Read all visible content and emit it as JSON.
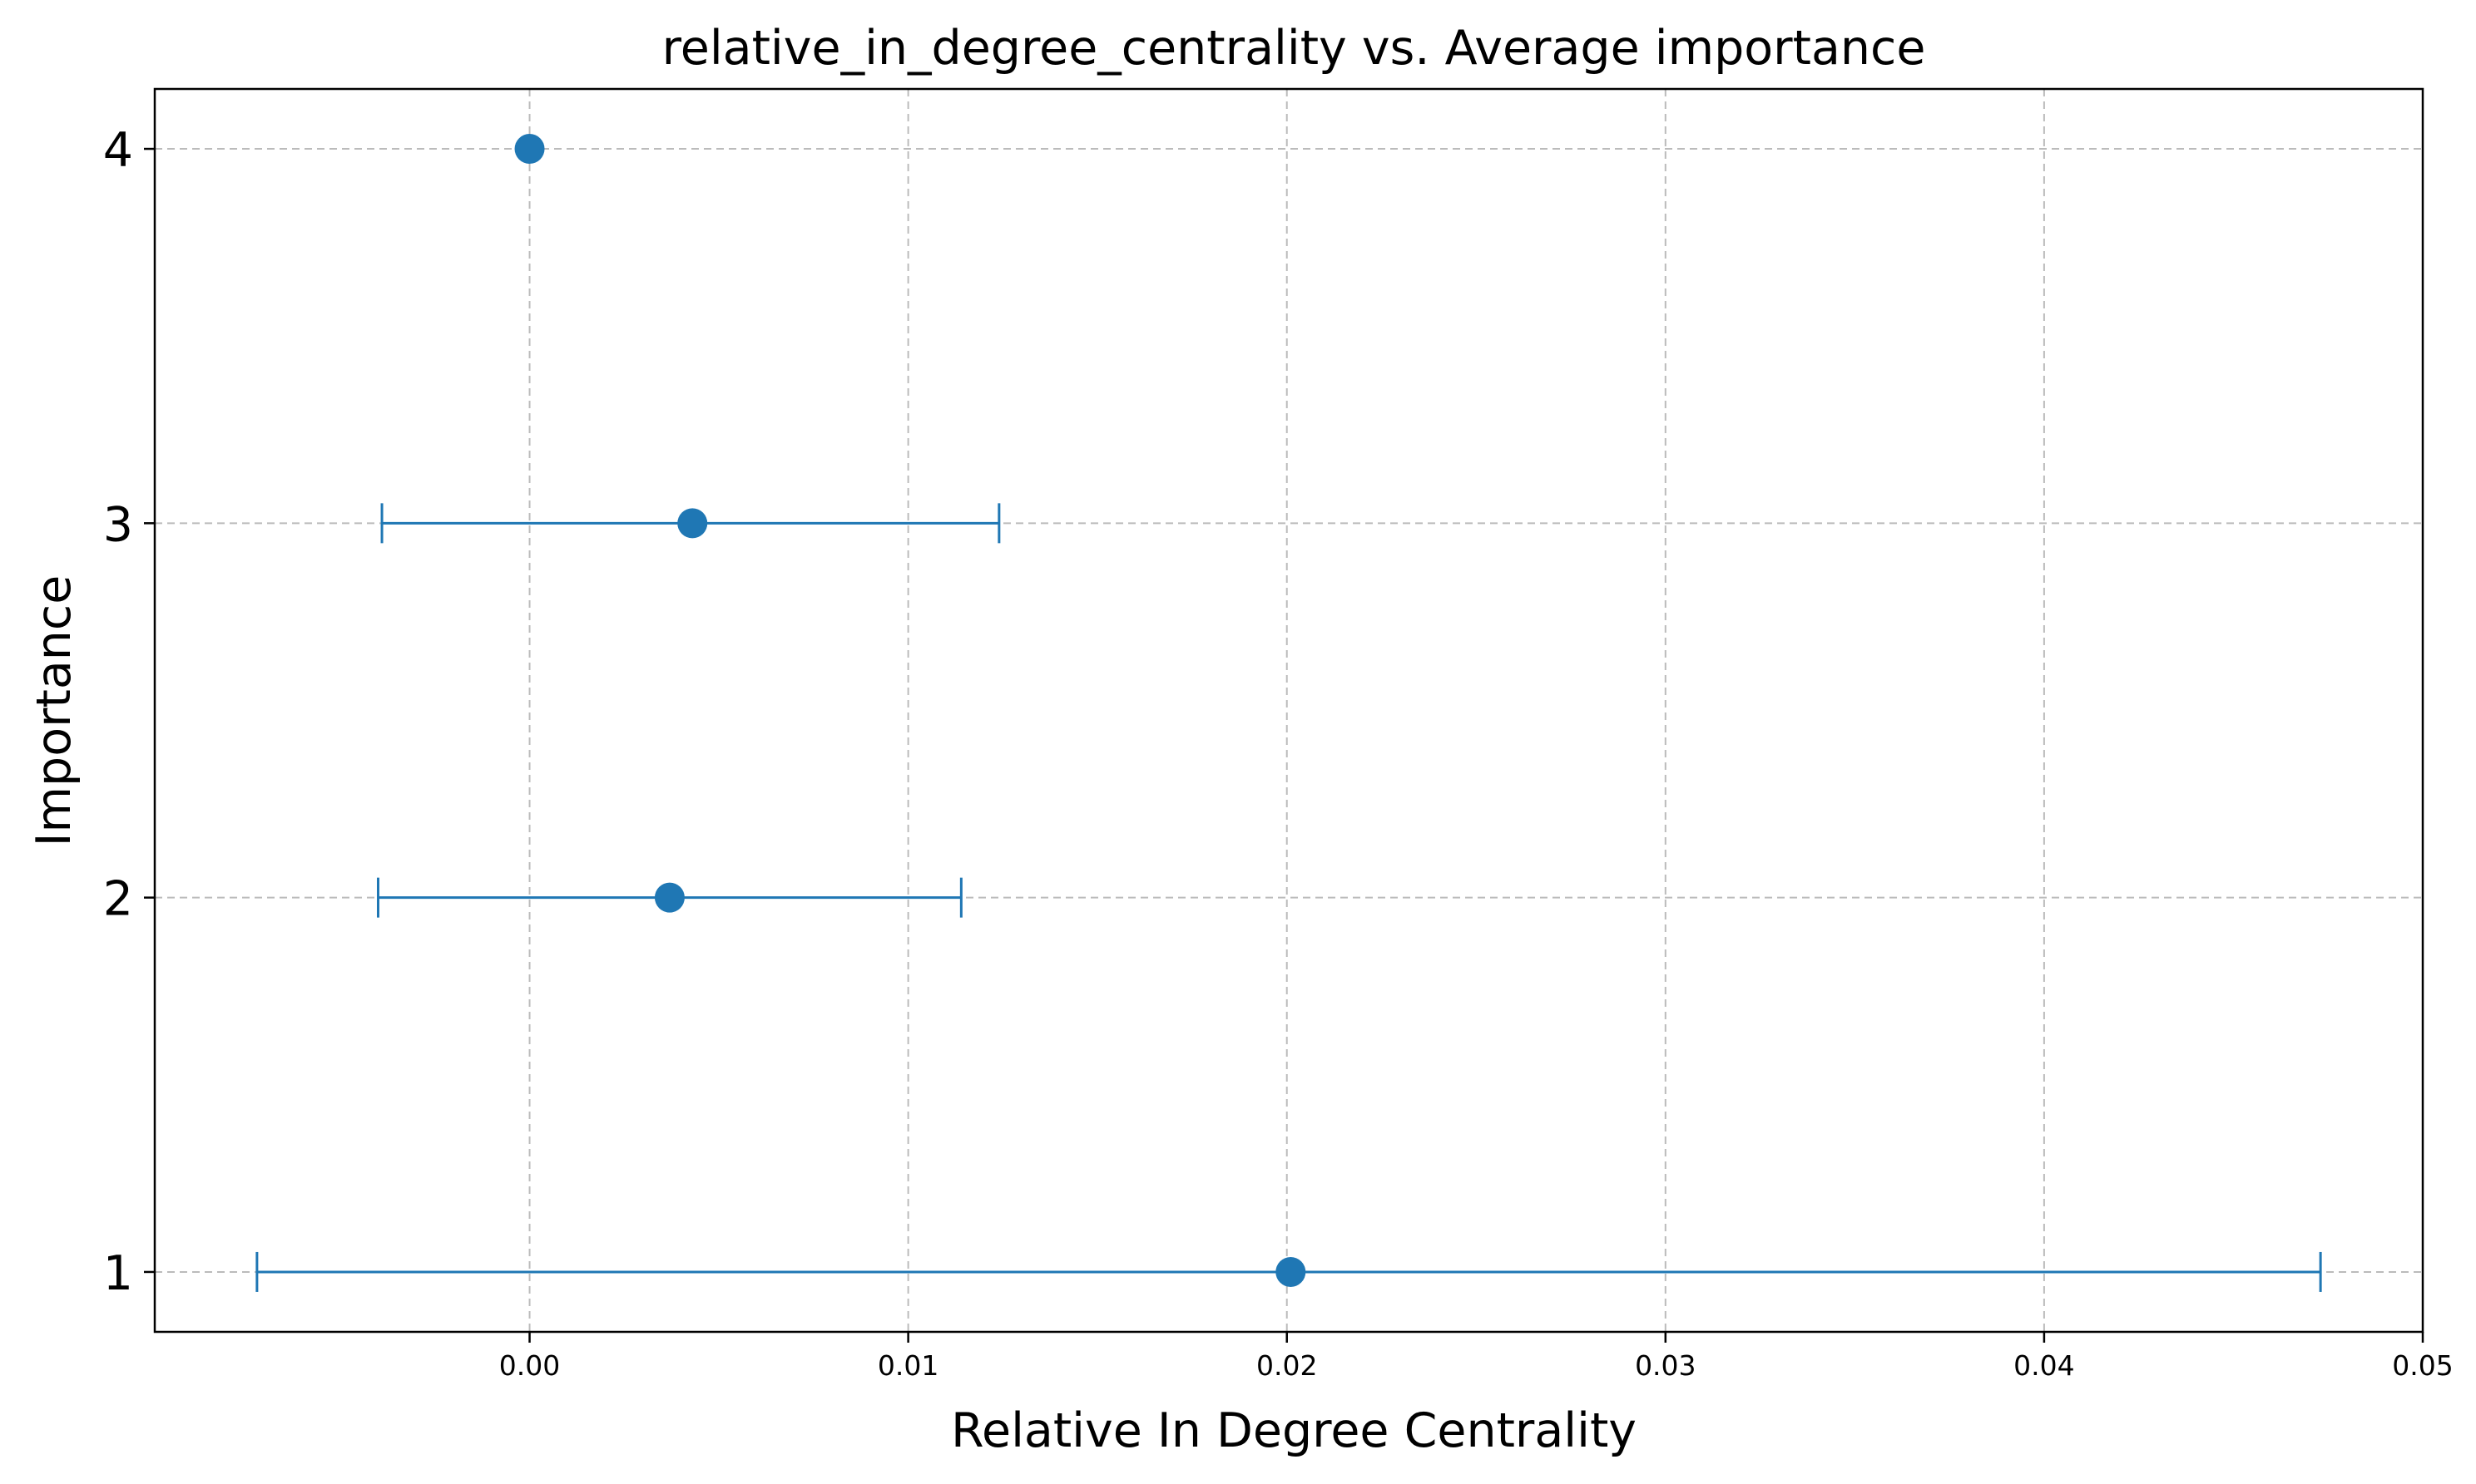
{
  "chart_data": {
    "type": "scatter",
    "title": "relative_in_degree_centrality vs. Average importance",
    "xlabel": "Relative In Degree Centrality",
    "ylabel": "Importance",
    "xlim": [
      -0.0099,
      0.05
    ],
    "ylim": [
      0.84,
      4.16
    ],
    "xticks": [
      0.0,
      0.01,
      0.02,
      0.03,
      0.04,
      0.05
    ],
    "xtick_labels": [
      "0.00",
      "0.01",
      "0.02",
      "0.03",
      "0.04",
      "0.05"
    ],
    "yticks": [
      1,
      2,
      3,
      4
    ],
    "ytick_labels": [
      "1",
      "2",
      "3",
      "4"
    ],
    "grid": true,
    "series": [
      {
        "color": "#1f77b4",
        "points": [
          {
            "x": 0.0201,
            "y": 1,
            "xerr_low": -0.0072,
            "xerr_high": 0.0473
          },
          {
            "x": 0.0037,
            "y": 2,
            "xerr_low": -0.004,
            "xerr_high": 0.0114
          },
          {
            "x": 0.0043,
            "y": 3,
            "xerr_low": -0.0039,
            "xerr_high": 0.0124
          },
          {
            "x": 0.0,
            "y": 4,
            "xerr_low": 0.0,
            "xerr_high": 0.0
          }
        ]
      }
    ]
  }
}
